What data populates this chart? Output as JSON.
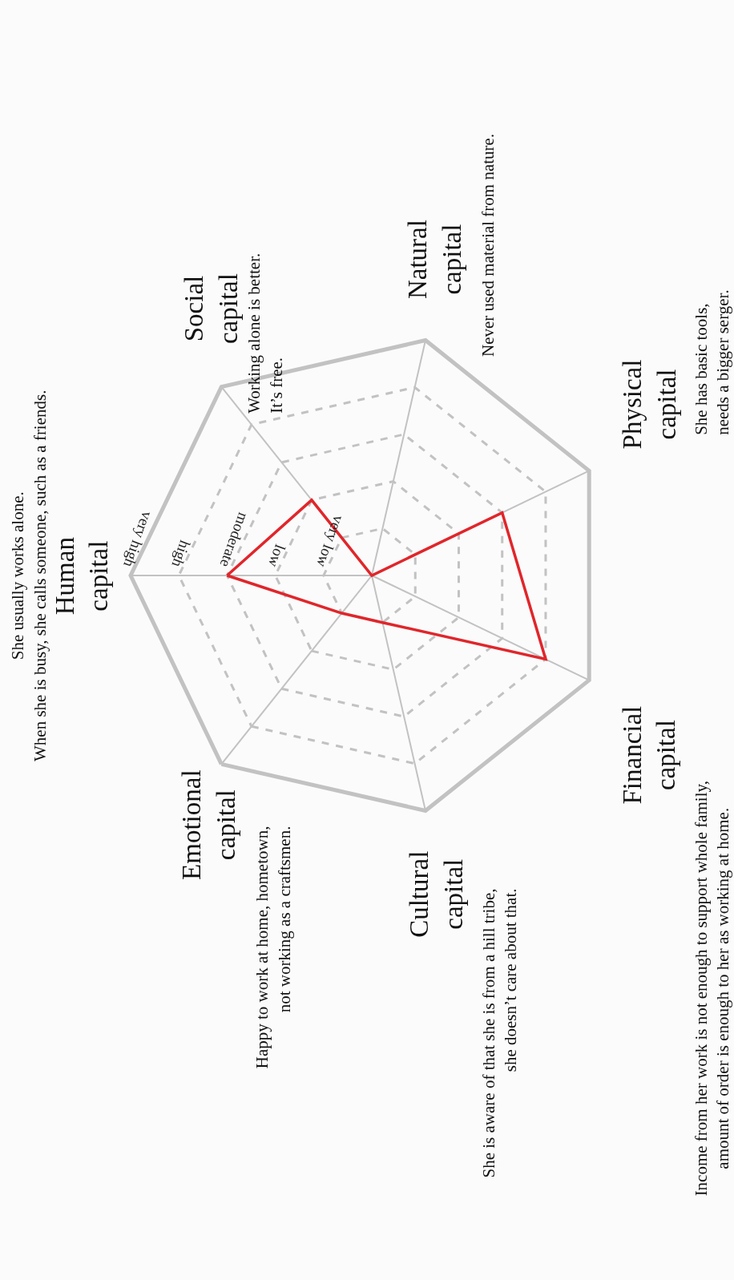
{
  "chart_data": {
    "type": "radar",
    "categories": [
      "Human capital",
      "Social capital",
      "Natural capital",
      "Physical capital",
      "Financial capital",
      "Cultural capital",
      "Emotional capital"
    ],
    "series": [
      {
        "color": "#e0262b",
        "values": [
          3,
          2,
          0,
          3,
          4,
          1,
          1
        ]
      }
    ],
    "ylim": [
      0,
      5
    ],
    "yticks": [
      {
        "value": 1,
        "label": "very low"
      },
      {
        "value": 2,
        "label": "low"
      },
      {
        "value": 3,
        "label": "moderate"
      },
      {
        "value": 4,
        "label": "high"
      },
      {
        "value": 5,
        "label": "very high"
      }
    ],
    "grid": true,
    "marker": "none",
    "annotations": [
      "She usually works alone.\nWhen she is busy, she calls someone, such as a friends.",
      "Working alone is better.\nIt’s free.",
      "Never used material from nature.",
      "She has basic tools,\nneeds a bigger serger.",
      "Income from her work is not enough to support whole family,\namount of order is enough to her as working at home.",
      "She is aware of that she is from a hill tribe,\nshe doesn’t care about that.",
      "Happy to work at home, hometown,\nnot working as a craftsmen."
    ]
  }
}
